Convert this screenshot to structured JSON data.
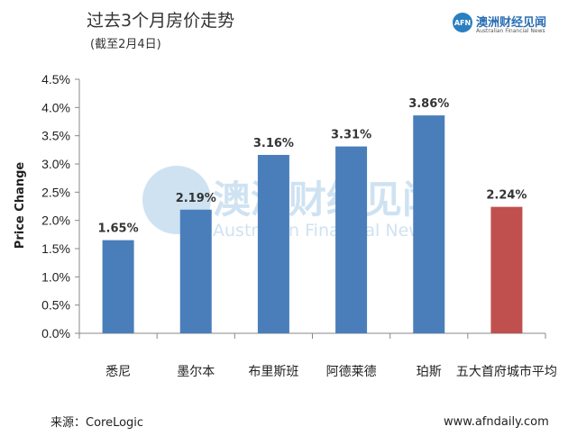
{
  "header": {
    "title": "过去3个月房价走势",
    "subtitle": "(截至2月4日)"
  },
  "logo": {
    "badge": "AFN",
    "cn": "澳洲财经见闻",
    "en": "Australian Financial News"
  },
  "watermark": {
    "cn": "澳洲财经见闻",
    "en": "Australian Financial News"
  },
  "footer": {
    "source": "来源：CoreLogic",
    "site": "www.afndaily.com"
  },
  "colors": {
    "bar": "#4a7ebb",
    "highlight": "#c0504d",
    "axis": "#888888"
  },
  "chart_data": {
    "type": "bar",
    "title": "过去3个月房价走势",
    "subtitle": "(截至2月4日)",
    "xlabel": "",
    "ylabel": "Price Change",
    "categories": [
      "悉尼",
      "墨尔本",
      "布里斯班",
      "阿德莱德",
      "珀斯",
      "五大首府城市平均"
    ],
    "values": [
      1.65,
      2.19,
      3.16,
      3.31,
      3.86,
      2.24
    ],
    "value_labels": [
      "1.65%",
      "2.19%",
      "3.16%",
      "3.31%",
      "3.86%",
      "2.24%"
    ],
    "highlight_index": 5,
    "ylim": [
      0,
      4.5
    ],
    "yticks": [
      "0.0%",
      "0.5%",
      "1.0%",
      "1.5%",
      "2.0%",
      "2.5%",
      "3.0%",
      "3.5%",
      "4.0%",
      "4.5%"
    ],
    "grid": false,
    "legend": "none"
  }
}
